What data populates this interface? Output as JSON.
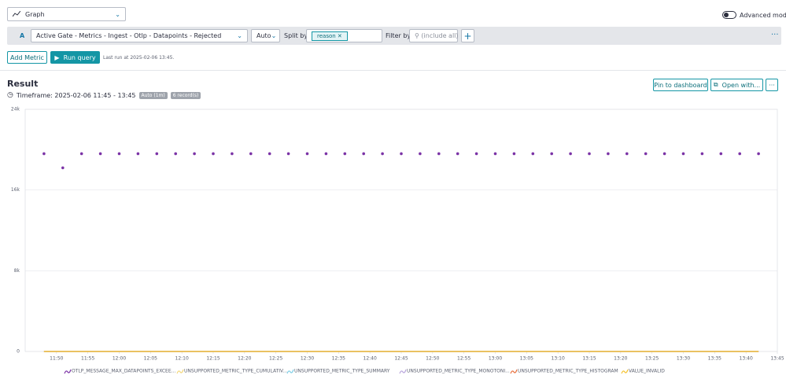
{
  "toolbar": {
    "visualization": "Graph",
    "advanced_mode": "Advanced mode"
  },
  "query": {
    "letter": "A",
    "metric": "Active Gate - Metrics - Ingest - Otlp - Datapoints - Rejected",
    "aggregation": "Auto",
    "split_label": "Split by",
    "split_value": "reason",
    "filter_label": "Filter by",
    "filter_placeholder": "(include all)"
  },
  "actions": {
    "add_metric": "Add Metric",
    "run_query": "Run query",
    "last_run": "Last run at 2025-02-06 13:45."
  },
  "result": {
    "title": "Result",
    "timeframe": "Timeframe: 2025-02-06 11:45 - 13:45",
    "resolution": "Auto (1m)",
    "records": "6 record(s)",
    "pin": "Pin to dashboard",
    "open_with": "Open with..."
  },
  "chart_data": {
    "type": "line",
    "x": [
      "11:48",
      "11:51",
      "11:54",
      "11:57",
      "12:00",
      "12:03",
      "12:06",
      "12:09",
      "12:12",
      "12:15",
      "12:18",
      "12:21",
      "12:24",
      "12:27",
      "12:30",
      "12:33",
      "12:36",
      "12:39",
      "12:42",
      "12:45",
      "12:48",
      "12:51",
      "12:54",
      "12:57",
      "13:00",
      "13:03",
      "13:06",
      "13:09",
      "13:12",
      "13:15",
      "13:18",
      "13:21",
      "13:24",
      "13:27",
      "13:30",
      "13:33",
      "13:36",
      "13:39",
      "13:42"
    ],
    "xlim": [
      "11:45",
      "13:45"
    ],
    "xticks": [
      "11:50",
      "11:55",
      "12:00",
      "12:05",
      "12:10",
      "12:15",
      "12:20",
      "12:25",
      "12:30",
      "12:35",
      "12:40",
      "12:45",
      "12:50",
      "12:55",
      "13:00",
      "13:05",
      "13:10",
      "13:15",
      "13:20",
      "13:25",
      "13:30",
      "13:35",
      "13:40",
      "13:45"
    ],
    "ylim": [
      0,
      24000
    ],
    "yticks": [
      0,
      {
        "value": 8000,
        "label": "8k"
      },
      {
        "value": 16000,
        "label": "16k"
      },
      {
        "value": 24000,
        "label": "24k"
      }
    ],
    "grid": true,
    "series": [
      {
        "name": "OTLP_MESSAGE_MAX_DATAPOINTS_EXCEE...",
        "color": "#7b33a6",
        "mode": "markers",
        "values": [
          19600,
          18200,
          19600,
          19600,
          19600,
          19600,
          19600,
          19600,
          19600,
          19600,
          19600,
          19600,
          19600,
          19600,
          19600,
          19600,
          19600,
          19600,
          19600,
          19600,
          19600,
          19600,
          19600,
          19600,
          19600,
          19600,
          19600,
          19600,
          19600,
          19600,
          19600,
          19600,
          19600,
          19600,
          19600,
          19600,
          19600,
          19600,
          19600
        ]
      },
      {
        "name": "UNSUPPORTED_METRIC_TYPE_CUMULATIV...",
        "color": "#f3d77a",
        "mode": "lines",
        "values": [
          0,
          0,
          0,
          0,
          0,
          0,
          0,
          0,
          0,
          0,
          0,
          0,
          0,
          0,
          0,
          0,
          0,
          0,
          0,
          0,
          0,
          0,
          0,
          0,
          0,
          0,
          0,
          0,
          0,
          0,
          0,
          0,
          0,
          0,
          0,
          0,
          0,
          0,
          0
        ]
      },
      {
        "name": "UNSUPPORTED_METRIC_TYPE_SUMMARY",
        "color": "#7fcfe6",
        "mode": "lines",
        "values": [
          0,
          0,
          0,
          0,
          0,
          0,
          0,
          0,
          0,
          0,
          0,
          0,
          0,
          0,
          0,
          0,
          0,
          0,
          0,
          0,
          0,
          0,
          0,
          0,
          0,
          0,
          0,
          0,
          0,
          0,
          0,
          0,
          0,
          0,
          0,
          0,
          0,
          0,
          0
        ]
      },
      {
        "name": "UNSUPPORTED_METRIC_TYPE_MONOTONI...",
        "color": "#b9a6dc",
        "mode": "lines",
        "values": [
          0,
          0,
          0,
          0,
          0,
          0,
          0,
          0,
          0,
          0,
          0,
          0,
          0,
          0,
          0,
          0,
          0,
          0,
          0,
          0,
          0,
          0,
          0,
          0,
          0,
          0,
          0,
          0,
          0,
          0,
          0,
          0,
          0,
          0,
          0,
          0,
          0,
          0,
          0
        ]
      },
      {
        "name": "UNSUPPORTED_METRIC_TYPE_HISTOGRAM",
        "color": "#e8703e",
        "mode": "lines",
        "values": [
          0,
          0,
          0,
          0,
          0,
          0,
          0,
          0,
          0,
          0,
          0,
          0,
          0,
          0,
          0,
          0,
          0,
          0,
          0,
          0,
          0,
          0,
          0,
          0,
          0,
          0,
          0,
          0,
          0,
          0,
          0,
          0,
          0,
          0,
          0,
          0,
          0,
          0,
          0
        ]
      },
      {
        "name": "VALUE_INVALID",
        "color": "#f5c330",
        "mode": "lines",
        "values": [
          0,
          0,
          0,
          0,
          0,
          0,
          0,
          0,
          0,
          0,
          0,
          0,
          0,
          0,
          0,
          0,
          0,
          0,
          0,
          0,
          0,
          0,
          0,
          0,
          0,
          0,
          0,
          0,
          0,
          0,
          0,
          0,
          0,
          0,
          0,
          0,
          0,
          0,
          0
        ]
      }
    ]
  }
}
